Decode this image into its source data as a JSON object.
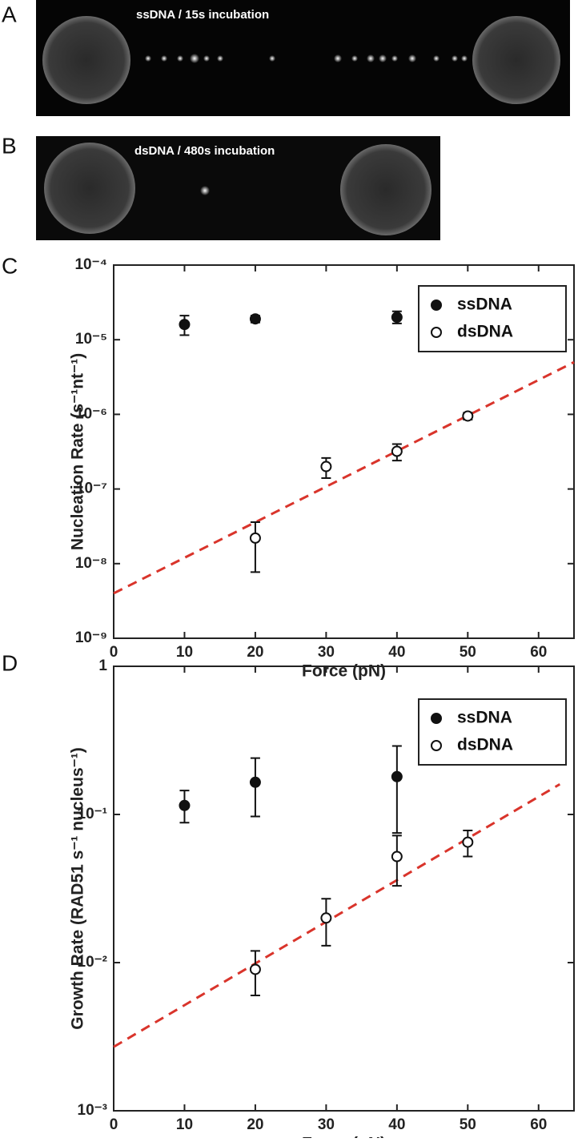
{
  "panel_labels": [
    "A",
    "B",
    "C",
    "D"
  ],
  "images": [
    {
      "label": "ssDNA / 15s incubation"
    },
    {
      "label": "dsDNA / 480s incubation"
    }
  ],
  "chart_data": [
    {
      "type": "scatter",
      "x_label": "Force (pN)",
      "y_label": "Nucleation Rate (s⁻¹nt⁻¹)",
      "xlim": [
        0,
        65
      ],
      "xticks": [
        0,
        10,
        20,
        30,
        40,
        50,
        60
      ],
      "ylim": [
        1e-09,
        0.0001
      ],
      "y_scale": "log",
      "yticks": [
        {
          "value": 1e-09,
          "label": "10⁻⁹"
        },
        {
          "value": 1e-08,
          "label": "10⁻⁸"
        },
        {
          "value": 1e-07,
          "label": "10⁻⁷"
        },
        {
          "value": 1e-06,
          "label": "10⁻⁶"
        },
        {
          "value": 1e-05,
          "label": "10⁻⁵"
        },
        {
          "value": 0.0001,
          "label": "10⁻⁴"
        }
      ],
      "legend": "upper right",
      "series": [
        {
          "name": "ssDNA",
          "color": "#111111",
          "filled": true,
          "x": [
            10,
            20,
            40
          ],
          "values": [
            1.6e-05,
            1.9e-05,
            2e-05
          ],
          "lower": [
            1.15e-05,
            1.7e-05,
            1.65e-05
          ],
          "upper": [
            2.1e-05,
            2.1e-05,
            2.4e-05
          ]
        },
        {
          "name": "dsDNA",
          "color": "#111111",
          "filled": false,
          "x": [
            20,
            30,
            40,
            50
          ],
          "values": [
            2.2e-08,
            2e-07,
            3.2e-07,
            9.5e-07
          ],
          "lower": [
            7.7e-09,
            1.4e-07,
            2.4e-07,
            8.5e-07
          ],
          "upper": [
            3.6e-08,
            2.6e-07,
            4e-07,
            1.05e-06
          ]
        }
      ],
      "fit_line": {
        "color": "#d9342b",
        "x": [
          0,
          65
        ],
        "values": [
          4e-09,
          5e-06
        ]
      }
    },
    {
      "type": "scatter",
      "x_label": "Force (pN)",
      "y_label": "Growth Rate (RAD51 s⁻¹ nucleus⁻¹)",
      "xlim": [
        0,
        65
      ],
      "xticks": [
        0,
        10,
        20,
        30,
        40,
        50,
        60
      ],
      "ylim": [
        0.001,
        1
      ],
      "y_scale": "log",
      "yticks": [
        {
          "value": 0.001,
          "label": "10⁻³"
        },
        {
          "value": 0.01,
          "label": "10⁻²"
        },
        {
          "value": 0.1,
          "label": "10⁻¹"
        },
        1
      ],
      "legend": "upper right",
      "series": [
        {
          "name": "ssDNA",
          "color": "#111111",
          "filled": true,
          "x": [
            10,
            20,
            40
          ],
          "values": [
            0.115,
            0.165,
            0.18
          ],
          "lower": [
            0.088,
            0.097,
            0.075
          ],
          "upper": [
            0.145,
            0.24,
            0.29
          ]
        },
        {
          "name": "dsDNA",
          "color": "#111111",
          "filled": false,
          "x": [
            20,
            30,
            40,
            50
          ],
          "values": [
            0.009,
            0.02,
            0.052,
            0.065
          ],
          "lower": [
            0.006,
            0.013,
            0.033,
            0.052
          ],
          "upper": [
            0.012,
            0.027,
            0.072,
            0.078
          ]
        }
      ],
      "fit_line": {
        "color": "#d9342b",
        "x": [
          0,
          63
        ],
        "values": [
          0.0027,
          0.16
        ]
      }
    }
  ]
}
